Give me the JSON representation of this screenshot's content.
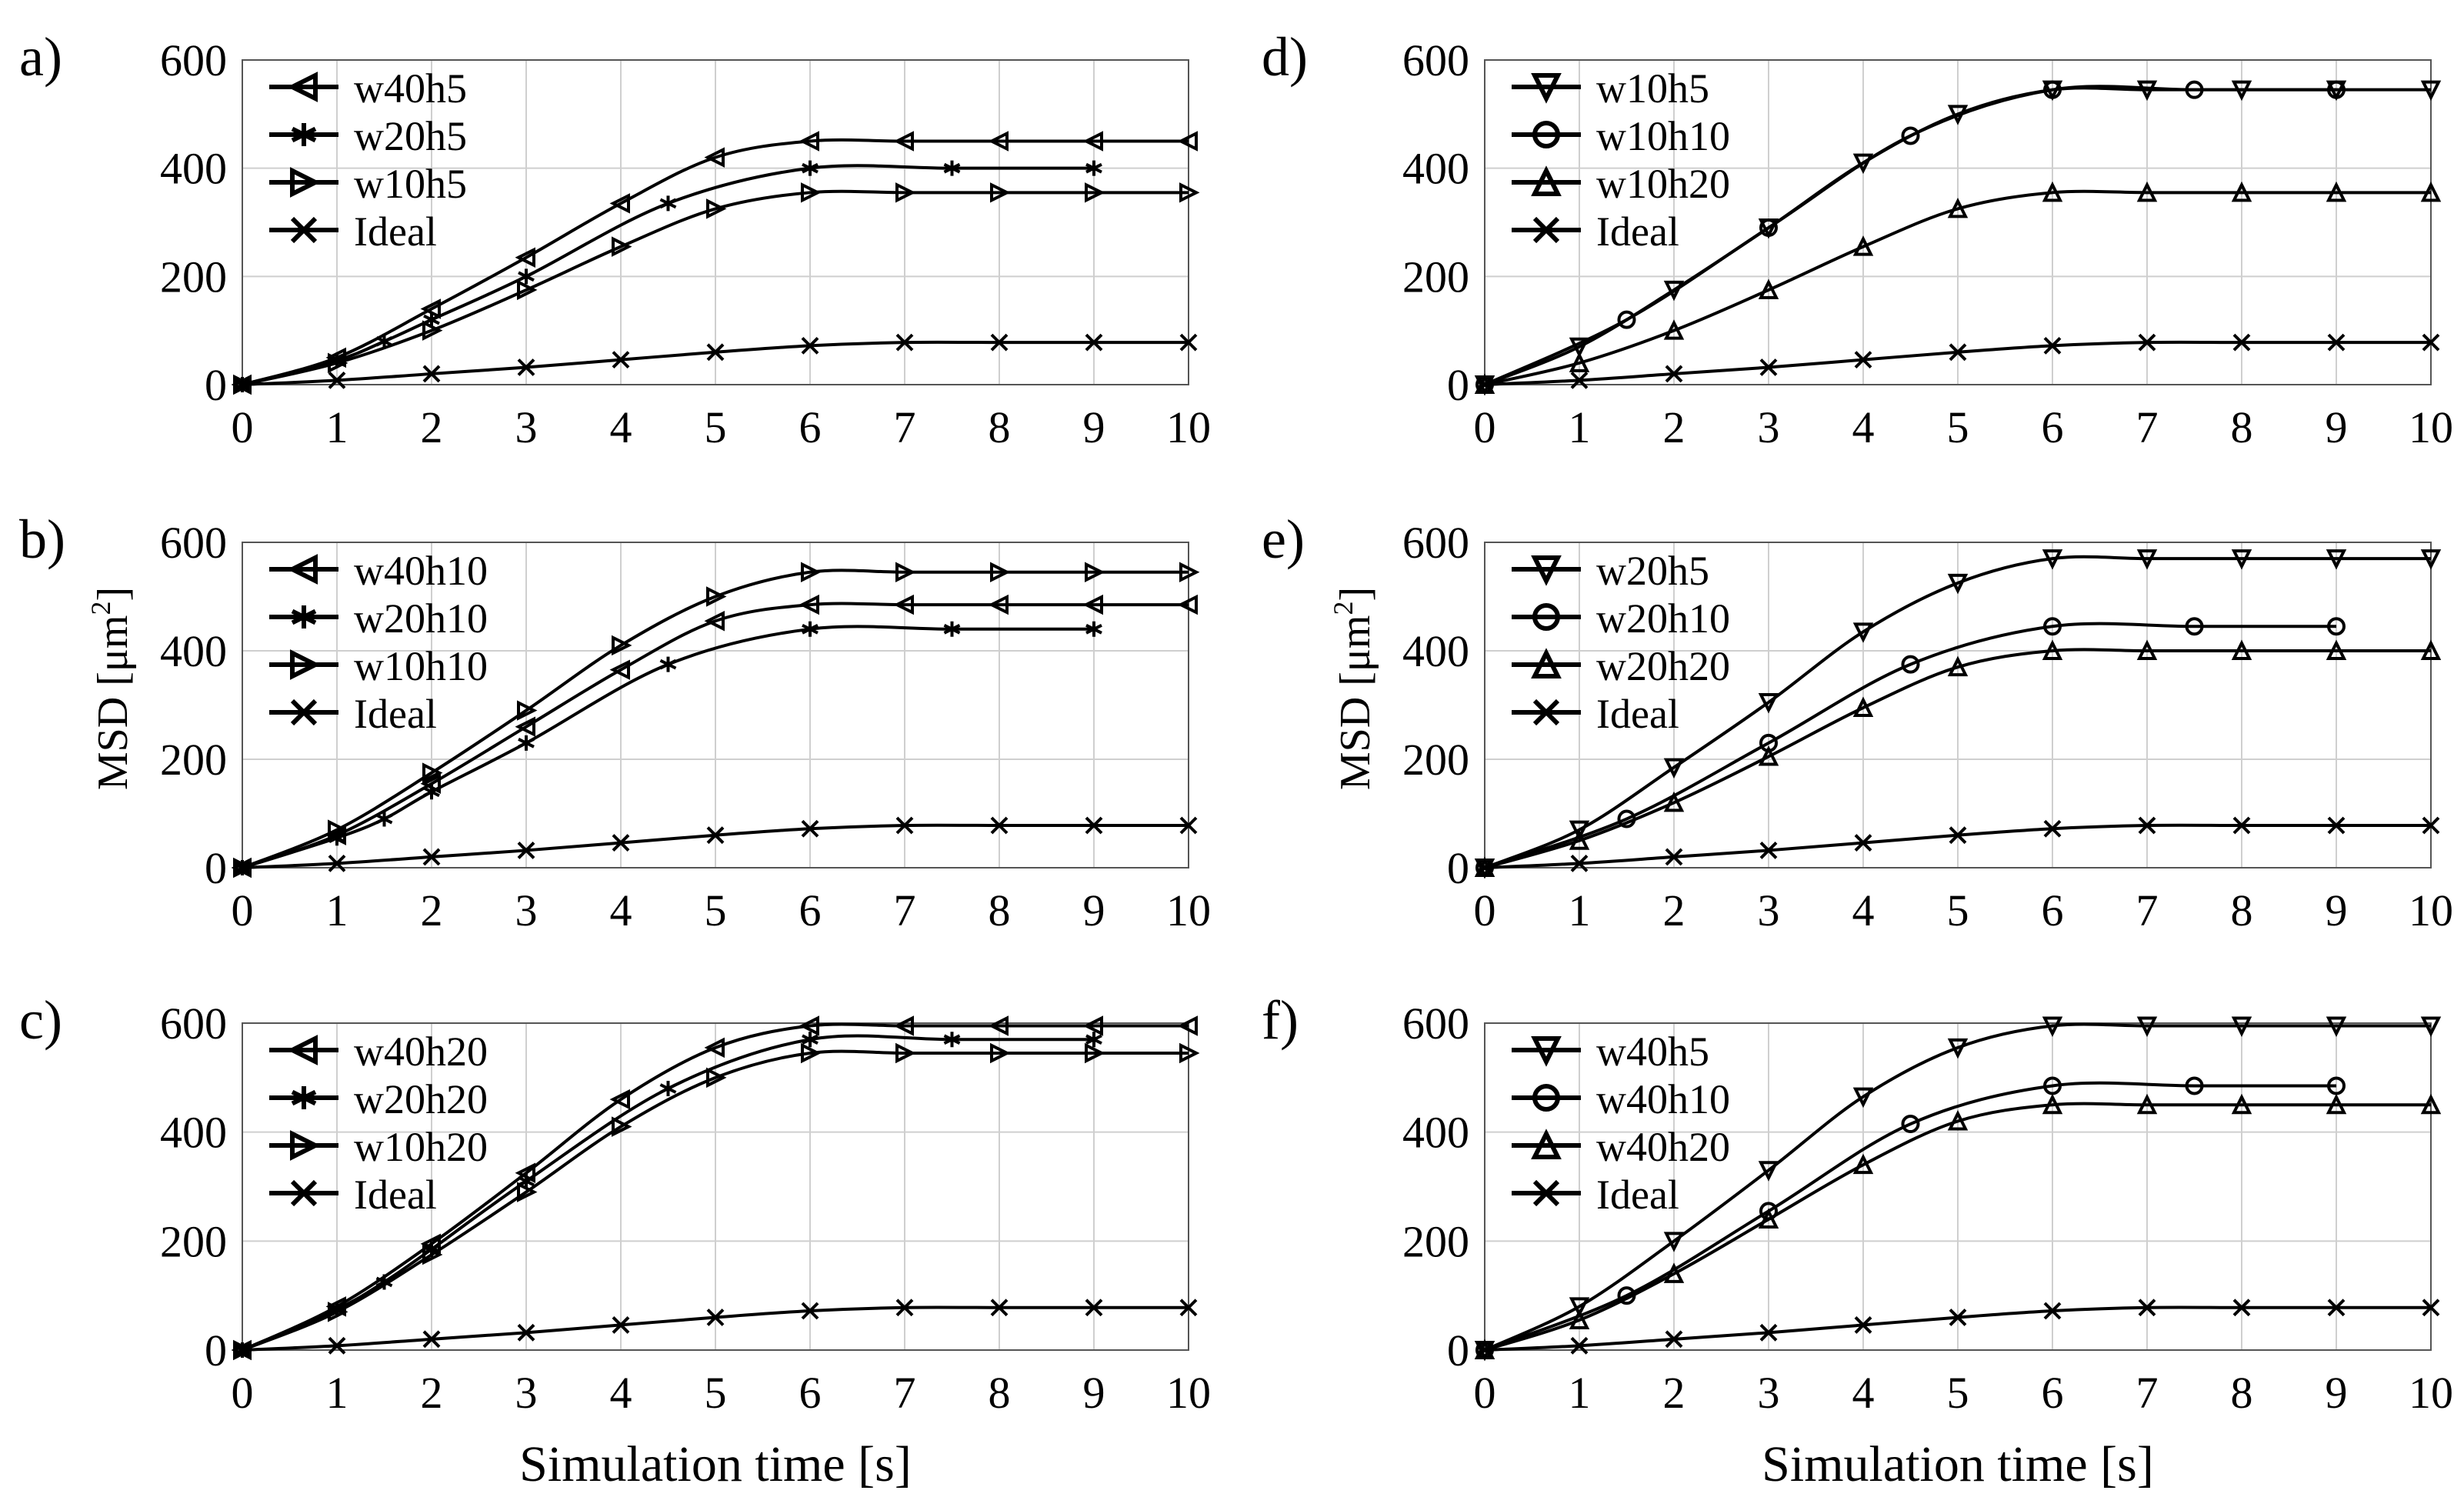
{
  "figure": {
    "ylabel_left": "MSD [μm",
    "ylabel_sup": "2",
    "ylabel_close": "]",
    "xlabel": "Simulation time [s]"
  },
  "chart_data": [
    {
      "type": "line",
      "panel": "a)",
      "ylim": [
        0,
        600
      ],
      "xlim": [
        0,
        10
      ],
      "x_ticks": [
        0,
        1,
        2,
        3,
        4,
        5,
        6,
        7,
        8,
        9,
        10
      ],
      "y_ticks": [
        0,
        200,
        400,
        600
      ],
      "grid": true,
      "legend_position": "top-left",
      "series": [
        {
          "name": "w40h5",
          "marker": "tri-left",
          "x": [
            0,
            1,
            2,
            3,
            4,
            5,
            6,
            7,
            8,
            9,
            10
          ],
          "values": [
            0,
            50,
            140,
            235,
            335,
            420,
            450,
            450,
            450,
            450,
            450
          ]
        },
        {
          "name": "w20h5",
          "marker": "asterisk",
          "x": [
            0,
            1,
            1.5,
            2,
            3,
            4.5,
            6,
            7.5,
            9
          ],
          "values": [
            0,
            45,
            80,
            120,
            200,
            335,
            400,
            400,
            400
          ]
        },
        {
          "name": "w10h5",
          "marker": "tri-right",
          "x": [
            0,
            1,
            2,
            3,
            4,
            5,
            6,
            7,
            8,
            9,
            10
          ],
          "values": [
            0,
            40,
            100,
            175,
            255,
            325,
            355,
            355,
            355,
            355,
            355
          ]
        },
        {
          "name": "Ideal",
          "marker": "x",
          "x": [
            0,
            1,
            2,
            3,
            4,
            5,
            6,
            7,
            8,
            9,
            10
          ],
          "values": [
            0,
            8,
            20,
            32,
            46,
            60,
            72,
            78,
            78,
            78,
            78
          ]
        }
      ]
    },
    {
      "type": "line",
      "panel": "b)",
      "ylim": [
        0,
        600
      ],
      "xlim": [
        0,
        10
      ],
      "x_ticks": [
        0,
        1,
        2,
        3,
        4,
        5,
        6,
        7,
        8,
        9,
        10
      ],
      "y_ticks": [
        0,
        200,
        400,
        600
      ],
      "grid": true,
      "legend_position": "top-left",
      "series": [
        {
          "name": "w40h10",
          "marker": "tri-left",
          "x": [
            0,
            1,
            2,
            3,
            4,
            5,
            6,
            7,
            8,
            9,
            10
          ],
          "values": [
            0,
            60,
            155,
            260,
            365,
            455,
            485,
            485,
            485,
            485,
            485
          ]
        },
        {
          "name": "w20h10",
          "marker": "asterisk",
          "x": [
            0,
            1,
            1.5,
            2,
            3,
            4.5,
            6,
            7.5,
            9
          ],
          "values": [
            0,
            55,
            90,
            140,
            230,
            375,
            440,
            440,
            440
          ]
        },
        {
          "name": "w10h10",
          "marker": "tri-right",
          "x": [
            0,
            1,
            2,
            3,
            4,
            5,
            6,
            7,
            8,
            9,
            10
          ],
          "values": [
            0,
            70,
            175,
            290,
            410,
            500,
            545,
            545,
            545,
            545,
            545
          ]
        },
        {
          "name": "Ideal",
          "marker": "x",
          "x": [
            0,
            1,
            2,
            3,
            4,
            5,
            6,
            7,
            8,
            9,
            10
          ],
          "values": [
            0,
            8,
            20,
            32,
            46,
            60,
            72,
            78,
            78,
            78,
            78
          ]
        }
      ]
    },
    {
      "type": "line",
      "panel": "c)",
      "ylim": [
        0,
        600
      ],
      "xlim": [
        0,
        10
      ],
      "x_ticks": [
        0,
        1,
        2,
        3,
        4,
        5,
        6,
        7,
        8,
        9,
        10
      ],
      "y_ticks": [
        0,
        200,
        400,
        600
      ],
      "grid": true,
      "legend_position": "top-left",
      "series": [
        {
          "name": "w40h20",
          "marker": "tri-left",
          "x": [
            0,
            1,
            2,
            3,
            4,
            5,
            6,
            7,
            8,
            9,
            10
          ],
          "values": [
            0,
            80,
            195,
            325,
            460,
            555,
            595,
            595,
            595,
            595,
            595
          ]
        },
        {
          "name": "w20h20",
          "marker": "asterisk",
          "x": [
            0,
            1,
            1.5,
            2,
            3,
            4.5,
            6,
            7.5,
            9
          ],
          "values": [
            0,
            75,
            125,
            185,
            310,
            480,
            570,
            570,
            570
          ]
        },
        {
          "name": "w10h20",
          "marker": "tri-right",
          "x": [
            0,
            1,
            2,
            3,
            4,
            5,
            6,
            7,
            8,
            9,
            10
          ],
          "values": [
            0,
            70,
            175,
            290,
            410,
            500,
            545,
            545,
            545,
            545,
            545
          ]
        },
        {
          "name": "Ideal",
          "marker": "x",
          "x": [
            0,
            1,
            2,
            3,
            4,
            5,
            6,
            7,
            8,
            9,
            10
          ],
          "values": [
            0,
            8,
            20,
            32,
            46,
            60,
            72,
            78,
            78,
            78,
            78
          ]
        }
      ]
    },
    {
      "type": "line",
      "panel": "d)",
      "ylim": [
        0,
        600
      ],
      "xlim": [
        0,
        10
      ],
      "x_ticks": [
        0,
        1,
        2,
        3,
        4,
        5,
        6,
        7,
        8,
        9,
        10
      ],
      "y_ticks": [
        0,
        200,
        400,
        600
      ],
      "grid": true,
      "legend_position": "top-left",
      "series": [
        {
          "name": "w10h5",
          "marker": "tri-down",
          "x": [
            0,
            1,
            2,
            3,
            4,
            5,
            6,
            7,
            8,
            9,
            10
          ],
          "values": [
            0,
            70,
            175,
            290,
            410,
            500,
            545,
            545,
            545,
            545,
            545
          ]
        },
        {
          "name": "w10h10",
          "marker": "circle",
          "x": [
            0,
            1.5,
            3,
            4.5,
            6,
            7.5,
            9
          ],
          "values": [
            0,
            120,
            290,
            460,
            545,
            545,
            545
          ]
        },
        {
          "name": "w10h20",
          "marker": "tri-up",
          "x": [
            0,
            1,
            2,
            3,
            4,
            5,
            6,
            7,
            8,
            9,
            10
          ],
          "values": [
            0,
            40,
            100,
            175,
            255,
            325,
            355,
            355,
            355,
            355,
            355
          ]
        },
        {
          "name": "Ideal",
          "marker": "x",
          "x": [
            0,
            1,
            2,
            3,
            4,
            5,
            6,
            7,
            8,
            9,
            10
          ],
          "values": [
            0,
            8,
            20,
            32,
            46,
            60,
            72,
            78,
            78,
            78,
            78
          ]
        }
      ]
    },
    {
      "type": "line",
      "panel": "e)",
      "ylim": [
        0,
        600
      ],
      "xlim": [
        0,
        10
      ],
      "x_ticks": [
        0,
        1,
        2,
        3,
        4,
        5,
        6,
        7,
        8,
        9,
        10
      ],
      "y_ticks": [
        0,
        200,
        400,
        600
      ],
      "grid": true,
      "legend_position": "top-left",
      "series": [
        {
          "name": "w20h5",
          "marker": "tri-down",
          "x": [
            0,
            1,
            2,
            3,
            4,
            5,
            6,
            7,
            8,
            9,
            10
          ],
          "values": [
            0,
            70,
            185,
            305,
            435,
            525,
            570,
            570,
            570,
            570,
            570
          ]
        },
        {
          "name": "w20h10",
          "marker": "circle",
          "x": [
            0,
            1.5,
            3,
            4.5,
            6,
            7.5,
            9
          ],
          "values": [
            0,
            90,
            230,
            375,
            445,
            445,
            445
          ]
        },
        {
          "name": "w20h20",
          "marker": "tri-up",
          "x": [
            0,
            1,
            2,
            3,
            4,
            5,
            6,
            7,
            8,
            9,
            10
          ],
          "values": [
            0,
            50,
            120,
            205,
            295,
            370,
            400,
            400,
            400,
            400,
            400
          ]
        },
        {
          "name": "Ideal",
          "marker": "x",
          "x": [
            0,
            1,
            2,
            3,
            4,
            5,
            6,
            7,
            8,
            9,
            10
          ],
          "values": [
            0,
            8,
            20,
            32,
            46,
            60,
            72,
            78,
            78,
            78,
            78
          ]
        }
      ]
    },
    {
      "type": "line",
      "panel": "f)",
      "ylim": [
        0,
        600
      ],
      "xlim": [
        0,
        10
      ],
      "x_ticks": [
        0,
        1,
        2,
        3,
        4,
        5,
        6,
        7,
        8,
        9,
        10
      ],
      "y_ticks": [
        0,
        200,
        400,
        600
      ],
      "grid": true,
      "legend_position": "top-left",
      "series": [
        {
          "name": "w40h5",
          "marker": "tri-down",
          "x": [
            0,
            1,
            2,
            3,
            4,
            5,
            6,
            7,
            8,
            9,
            10
          ],
          "values": [
            0,
            80,
            200,
            330,
            465,
            555,
            595,
            595,
            595,
            595,
            595
          ]
        },
        {
          "name": "w40h10",
          "marker": "circle",
          "x": [
            0,
            1.5,
            3,
            4.5,
            6,
            7.5,
            9
          ],
          "values": [
            0,
            100,
            255,
            415,
            485,
            485,
            485
          ]
        },
        {
          "name": "w40h20",
          "marker": "tri-up",
          "x": [
            0,
            1,
            2,
            3,
            4,
            5,
            6,
            7,
            8,
            9,
            10
          ],
          "values": [
            0,
            55,
            140,
            240,
            340,
            420,
            450,
            450,
            450,
            450,
            450
          ]
        },
        {
          "name": "Ideal",
          "marker": "x",
          "x": [
            0,
            1,
            2,
            3,
            4,
            5,
            6,
            7,
            8,
            9,
            10
          ],
          "values": [
            0,
            8,
            20,
            32,
            46,
            60,
            72,
            78,
            78,
            78,
            78
          ]
        }
      ]
    }
  ]
}
